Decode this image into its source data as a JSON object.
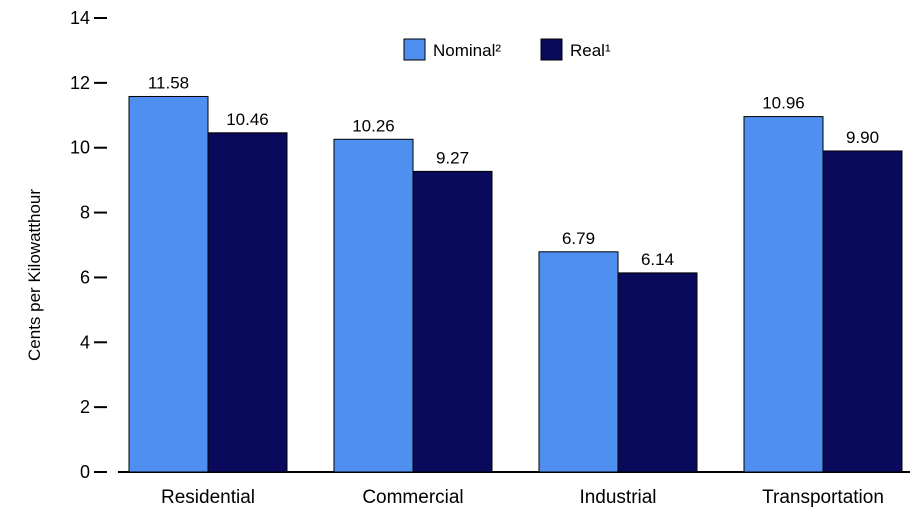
{
  "chart_data": {
    "type": "bar",
    "ylabel": "Cents per Kilowatthour",
    "ylim": [
      0,
      14
    ],
    "yticks": [
      0,
      2,
      4,
      6,
      8,
      10,
      12,
      14
    ],
    "grid": false,
    "legend_position": "top-center",
    "categories": [
      "Residential",
      "Commercial",
      "Industrial",
      "Transportation"
    ],
    "series": [
      {
        "name": "Nominal²",
        "color": "#4f8ff0",
        "values": [
          11.58,
          10.26,
          6.79,
          10.96
        ],
        "labels": [
          "11.58",
          "10.26",
          "6.79",
          "10.96"
        ]
      },
      {
        "name": "Real¹",
        "color": "#0a0a5c",
        "values": [
          10.46,
          9.27,
          6.14,
          9.9
        ],
        "labels": [
          "10.46",
          "9.27",
          "6.14",
          "9.90"
        ]
      }
    ]
  }
}
